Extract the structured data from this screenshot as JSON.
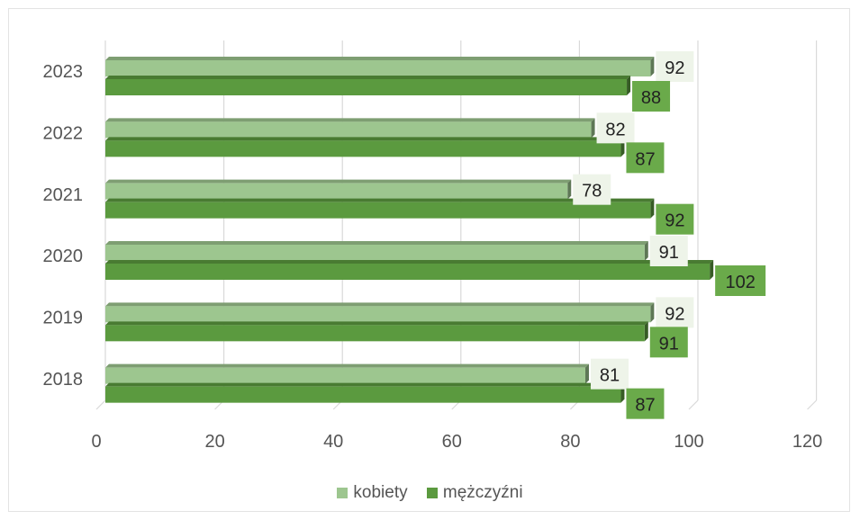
{
  "chart_data": {
    "type": "bar",
    "orientation": "horizontal",
    "categories": [
      "2018",
      "2019",
      "2020",
      "2021",
      "2022",
      "2023"
    ],
    "series": [
      {
        "name": "kobiety",
        "values": [
          81,
          92,
          91,
          78,
          82,
          92
        ],
        "color": "#9dc68f",
        "label_bg": "#eef4e9"
      },
      {
        "name": "mężczyźni",
        "values": [
          87,
          91,
          102,
          92,
          87,
          88
        ],
        "color": "#5b9a3f",
        "label_bg": "#6aaa4a"
      }
    ],
    "x_ticks": [
      0,
      20,
      40,
      60,
      80,
      100,
      120
    ],
    "xlim": [
      0,
      120
    ],
    "grid": true,
    "legend_position": "bottom"
  }
}
